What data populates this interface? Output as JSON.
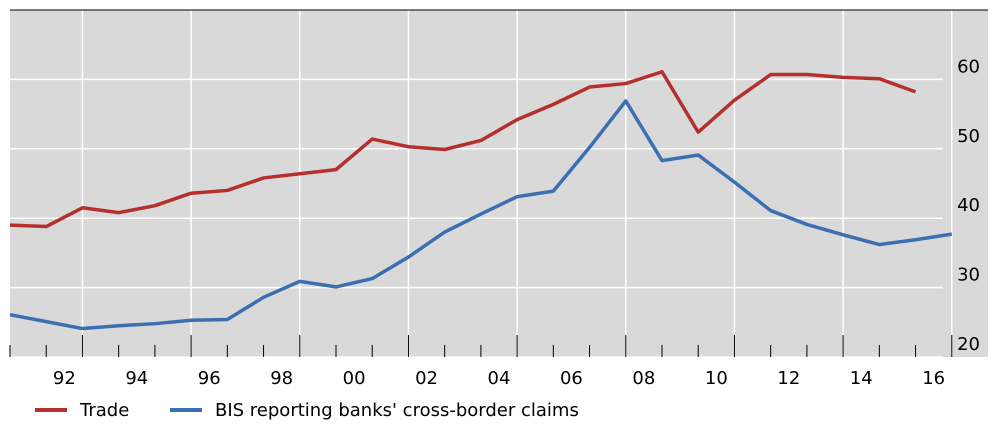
{
  "chart_data": {
    "type": "line",
    "x": [
      1991,
      1992,
      1993,
      1994,
      1995,
      1996,
      1997,
      1998,
      1999,
      2000,
      2001,
      2002,
      2003,
      2004,
      2005,
      2006,
      2007,
      2008,
      2009,
      2010,
      2011,
      2012,
      2013,
      2014,
      2015,
      2016,
      2017
    ],
    "series": [
      {
        "name": "Trade",
        "color": "#b5302d",
        "values": [
          39.0,
          38.8,
          41.5,
          40.8,
          41.8,
          43.6,
          44.0,
          45.8,
          46.4,
          47.0,
          51.4,
          50.3,
          49.9,
          51.2,
          54.2,
          56.4,
          58.9,
          59.4,
          61.1,
          52.4,
          57.0,
          60.7,
          60.7,
          60.3,
          60.1,
          58.2,
          null
        ]
      },
      {
        "name": "BIS reporting banks' cross-border claims",
        "color": "#3c6eb2",
        "values": [
          26.1,
          25.1,
          24.1,
          24.5,
          24.8,
          25.3,
          25.4,
          28.6,
          30.9,
          30.1,
          31.3,
          34.4,
          38.0,
          40.6,
          43.1,
          43.9,
          50.2,
          56.9,
          48.3,
          49.1,
          45.2,
          41.1,
          39.1,
          37.6,
          36.2,
          36.9,
          37.7
        ]
      }
    ],
    "xlim": [
      1991,
      2018
    ],
    "xticks": [
      {
        "value": 1992.5,
        "label": "92"
      },
      {
        "value": 1994.5,
        "label": "94"
      },
      {
        "value": 1996.5,
        "label": "96"
      },
      {
        "value": 1998.5,
        "label": "98"
      },
      {
        "value": 2000.5,
        "label": "00"
      },
      {
        "value": 2002.5,
        "label": "02"
      },
      {
        "value": 2004.5,
        "label": "04"
      },
      {
        "value": 2006.5,
        "label": "06"
      },
      {
        "value": 2008.5,
        "label": "08"
      },
      {
        "value": 2010.5,
        "label": "10"
      },
      {
        "value": 2012.5,
        "label": "12"
      },
      {
        "value": 2014.5,
        "label": "14"
      },
      {
        "value": 2016.5,
        "label": "16"
      }
    ],
    "ylim": [
      20,
      70
    ],
    "yticks": [
      20,
      30,
      40,
      50,
      60
    ],
    "grid": true
  }
}
